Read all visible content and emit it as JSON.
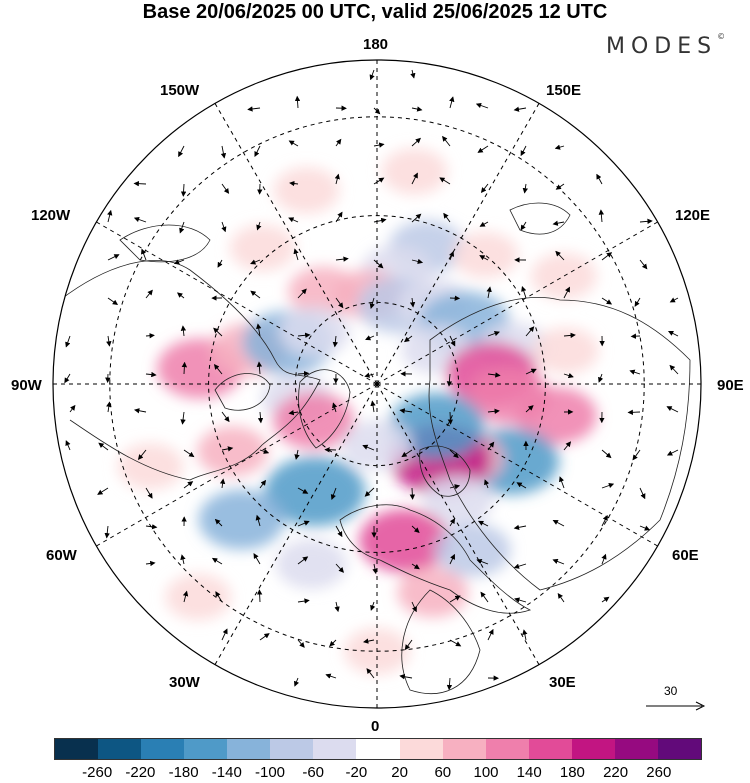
{
  "title": "Base 20/06/2025 00 UTC, valid 25/06/2025 12 UTC",
  "brand": "MODES",
  "brand_mark": "©",
  "longitude_labels": {
    "top": "180",
    "bottom": "0",
    "left": "90W",
    "right": "90E",
    "upper_left_1": "150W",
    "upper_left_2": "120W",
    "upper_right_1": "150E",
    "upper_right_2": "120E",
    "lower_left_1": "60W",
    "lower_left_2": "30W",
    "lower_right_1": "60E",
    "lower_right_2": "30E"
  },
  "reference_vector": "30",
  "colorbar": {
    "colors": [
      "#08304e",
      "#0d5683",
      "#2a7fb4",
      "#4f9ac8",
      "#87b3da",
      "#bcc9e6",
      "#dcdcef",
      "#ffffff",
      "#fcdada",
      "#f7b0c1",
      "#ef7fac",
      "#e24b98",
      "#c21582",
      "#960a80",
      "#620a7a"
    ],
    "ticks": [
      "-260",
      "-220",
      "-180",
      "-140",
      "-100",
      "-60",
      "-20",
      "20",
      "60",
      "100",
      "140",
      "180",
      "220",
      "260"
    ]
  },
  "anomaly_blobs": [
    {
      "lon": 160,
      "lat": 55,
      "value": -80
    },
    {
      "lon": 170,
      "lat": 62,
      "value": -60
    },
    {
      "lon": -160,
      "lat": 42,
      "value": 40
    },
    {
      "lon": 140,
      "lat": 50,
      "value": 40
    },
    {
      "lon": -140,
      "lat": 48,
      "value": 40
    },
    {
      "lon": -150,
      "lat": 64,
      "value": 60
    },
    {
      "lon": -175,
      "lat": 68,
      "value": 60
    },
    {
      "lon": 165,
      "lat": 70,
      "value": -100
    },
    {
      "lon": 145,
      "lat": 66,
      "value": -60
    },
    {
      "lon": 125,
      "lat": 64,
      "value": -140
    },
    {
      "lon": 120,
      "lat": 73,
      "value": -60
    },
    {
      "lon": 105,
      "lat": 56,
      "value": -60
    },
    {
      "lon": 95,
      "lat": 62,
      "value": 140
    },
    {
      "lon": 85,
      "lat": 58,
      "value": 100
    },
    {
      "lon": 80,
      "lat": 47,
      "value": 100
    },
    {
      "lon": 60,
      "lat": 53,
      "value": -160
    },
    {
      "lon": 50,
      "lat": 62,
      "value": 80
    },
    {
      "lon": 40,
      "lat": 66,
      "value": 180
    },
    {
      "lon": 55,
      "lat": 72,
      "value": -160
    },
    {
      "lon": 35,
      "lat": 56,
      "value": -60
    },
    {
      "lon": 10,
      "lat": 52,
      "value": 140
    },
    {
      "lon": 15,
      "lat": 40,
      "value": 60
    },
    {
      "lon": 30,
      "lat": 45,
      "value": -80
    },
    {
      "lon": -30,
      "lat": 60,
      "value": -180
    },
    {
      "lon": -45,
      "lat": 45,
      "value": -120
    },
    {
      "lon": -20,
      "lat": 45,
      "value": -60
    },
    {
      "lon": -65,
      "lat": 52,
      "value": 60
    },
    {
      "lon": -95,
      "lat": 48,
      "value": 120
    },
    {
      "lon": -105,
      "lat": 58,
      "value": 80
    },
    {
      "lon": -115,
      "lat": 66,
      "value": -140
    },
    {
      "lon": -130,
      "lat": 70,
      "value": -60
    },
    {
      "lon": -80,
      "lat": 70,
      "value": -60
    },
    {
      "lon": -60,
      "lat": 72,
      "value": 100
    },
    {
      "lon": -70,
      "lat": 35,
      "value": 40
    },
    {
      "lon": 0,
      "lat": 30,
      "value": 40
    },
    {
      "lon": 120,
      "lat": 40,
      "value": 40
    },
    {
      "lon": -40,
      "lat": 28,
      "value": 40
    },
    {
      "lon": 170,
      "lat": 40,
      "value": 40
    },
    {
      "lon": 0,
      "lat": 75,
      "value": -60
    },
    {
      "lon": 100,
      "lat": 45,
      "value": 40
    }
  ]
}
